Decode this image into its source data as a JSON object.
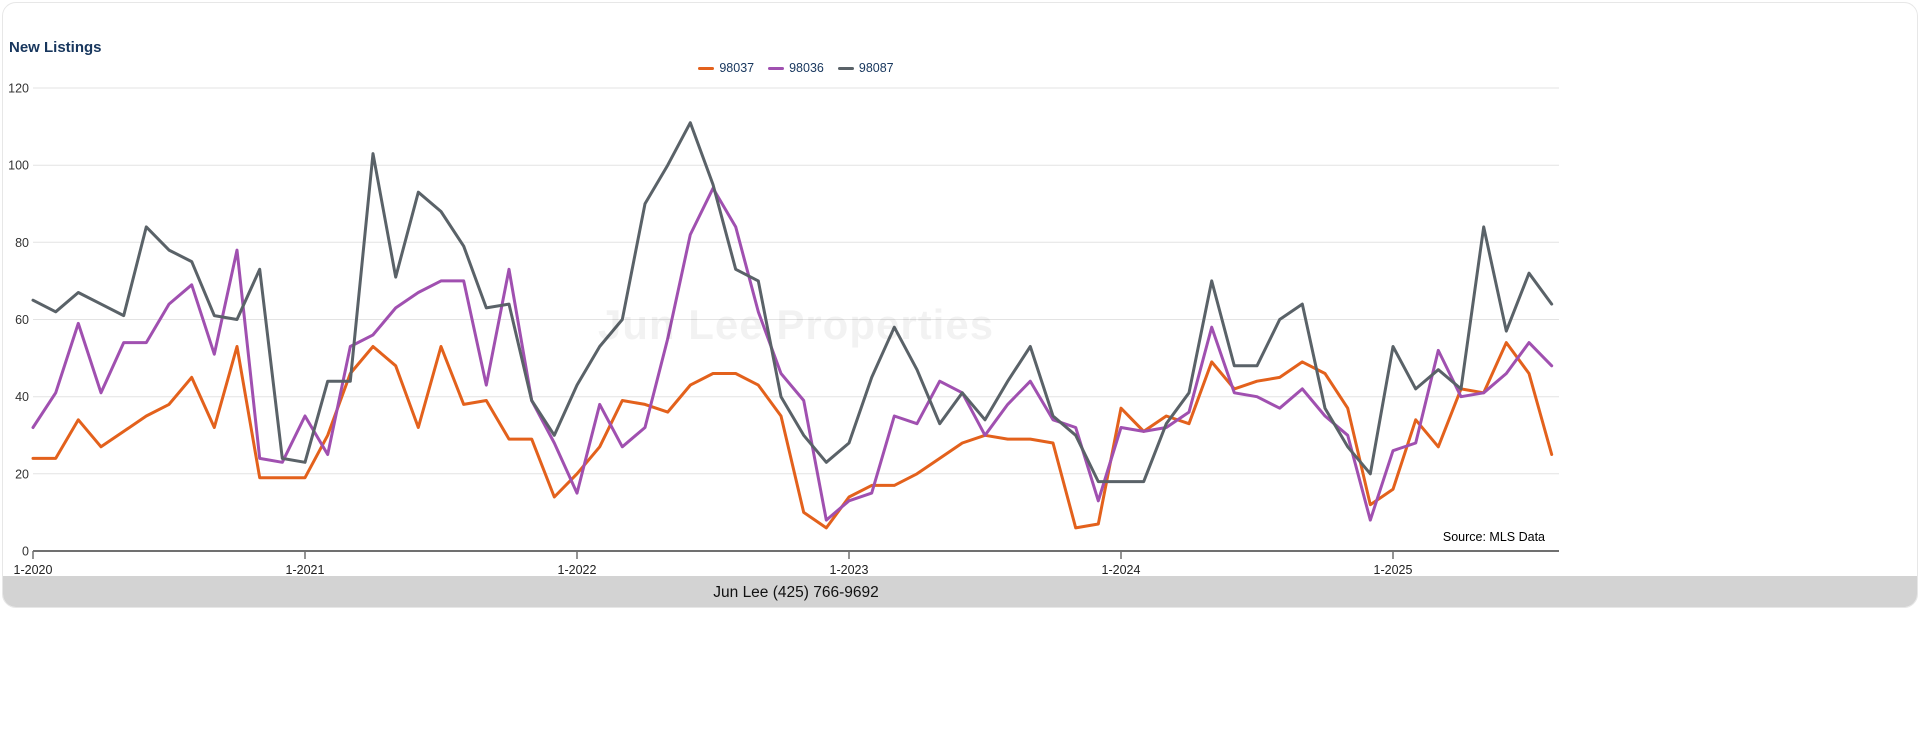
{
  "page": {
    "title": "New Listings",
    "watermark": "Jun Lee Properties",
    "source_note": "Source: MLS Data",
    "footer": "Jun Lee (425) 766-9692"
  },
  "colors": {
    "title_navy": "#17365d",
    "footer_bar": "#d3d3d3",
    "gridline": "#e3e3e3",
    "axis": "#707070"
  },
  "chart_data": {
    "type": "line",
    "title": "New Listings",
    "x_tick_labels": [
      "1-2020",
      "1-2021",
      "1-2022",
      "1-2023",
      "1-2024",
      "1-2025"
    ],
    "months_per_tick": 12,
    "x_start": "1-2020",
    "x_end": "8-2025",
    "frequency": "monthly",
    "ylim": [
      0,
      120
    ],
    "y_ticks": [
      0,
      20,
      40,
      60,
      80,
      100,
      120
    ],
    "grid": "horizontal",
    "legend_position": "top-center",
    "source": "Source: MLS Data",
    "series": [
      {
        "name": "98037",
        "color": "#e3611c",
        "values": [
          24,
          24,
          34,
          27,
          31,
          35,
          38,
          45,
          32,
          53,
          19,
          19,
          19,
          30,
          46,
          53,
          48,
          32,
          53,
          38,
          39,
          29,
          29,
          14,
          20,
          27,
          39,
          38,
          36,
          43,
          46,
          46,
          43,
          35,
          10,
          6,
          14,
          17,
          17,
          20,
          24,
          28,
          30,
          29,
          29,
          28,
          6,
          7,
          37,
          31,
          35,
          33,
          49,
          42,
          44,
          45,
          49,
          46,
          37,
          12,
          16,
          34,
          27,
          42,
          41,
          54,
          46,
          25
        ]
      },
      {
        "name": "98036",
        "color": "#a050b0",
        "values": [
          32,
          41,
          59,
          41,
          54,
          54,
          64,
          69,
          51,
          78,
          24,
          23,
          35,
          25,
          53,
          56,
          63,
          67,
          70,
          70,
          43,
          73,
          39,
          28,
          15,
          38,
          27,
          32,
          55,
          82,
          94,
          84,
          62,
          46,
          39,
          8,
          13,
          15,
          35,
          33,
          44,
          41,
          30,
          38,
          44,
          34,
          32,
          13,
          32,
          31,
          32,
          36,
          58,
          41,
          40,
          37,
          42,
          35,
          30,
          8,
          26,
          28,
          52,
          40,
          41,
          46,
          54,
          48
        ]
      },
      {
        "name": "98087",
        "color": "#5a6268",
        "values": [
          65,
          62,
          67,
          64,
          61,
          84,
          78,
          75,
          61,
          60,
          73,
          24,
          23,
          44,
          44,
          103,
          71,
          93,
          88,
          79,
          63,
          64,
          39,
          30,
          43,
          53,
          60,
          90,
          100,
          111,
          95,
          73,
          70,
          40,
          30,
          23,
          28,
          45,
          58,
          47,
          33,
          41,
          34,
          44,
          53,
          35,
          30,
          18,
          18,
          18,
          33,
          41,
          70,
          48,
          48,
          60,
          64,
          37,
          27,
          20,
          53,
          42,
          47,
          42,
          84,
          57,
          72,
          64
        ]
      }
    ]
  }
}
